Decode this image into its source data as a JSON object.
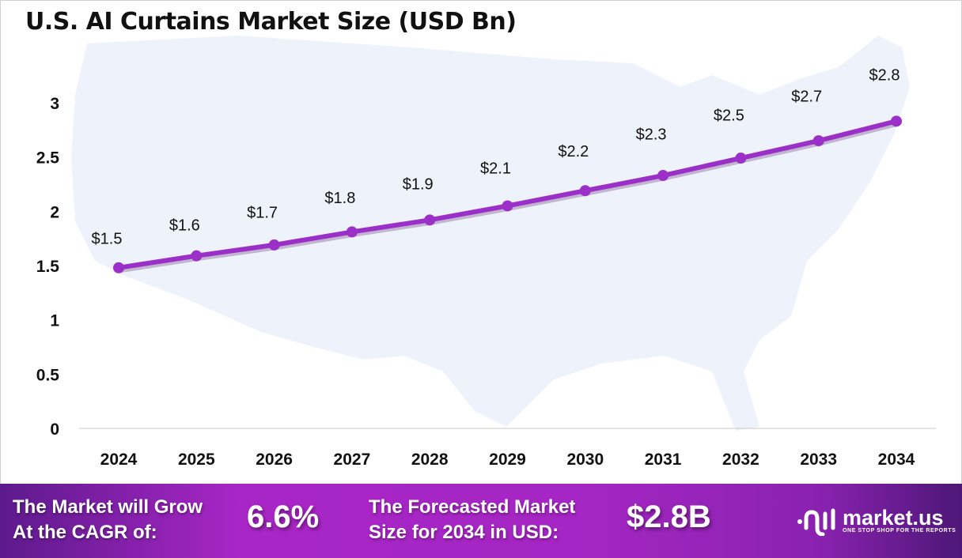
{
  "chart_data": {
    "type": "line",
    "title": "U.S. AI Curtains Market Size (USD Bn)",
    "xlabel": "",
    "ylabel": "",
    "categories": [
      "2024",
      "2025",
      "2026",
      "2027",
      "2028",
      "2029",
      "2030",
      "2031",
      "2032",
      "2033",
      "2034"
    ],
    "values": [
      1.48,
      1.59,
      1.69,
      1.81,
      1.92,
      2.05,
      2.19,
      2.33,
      2.49,
      2.65,
      2.83
    ],
    "data_labels": [
      "$1.5",
      "$1.6",
      "$1.7",
      "$1.8",
      "$1.9",
      "$2.1",
      "$2.2",
      "$2.3",
      "$2.5",
      "$2.7",
      "$2.8"
    ],
    "yticks": [
      "0",
      "0.5",
      "1",
      "1.5",
      "2",
      "2.5",
      "3"
    ],
    "ylim": [
      0,
      3
    ],
    "grid": false,
    "line_color": "#9b30c8",
    "background": "U.S. map silhouette"
  },
  "banner": {
    "cagr_label_line1": "The Market will Grow",
    "cagr_label_line2": "At the CAGR of:",
    "cagr_value": "6.6%",
    "forecast_label_line1": "The Forecasted Market",
    "forecast_label_line2": "Size for 2034 in USD:",
    "forecast_value": "$2.8B",
    "logo_name": "market.us",
    "logo_tagline": "ONE STOP SHOP FOR THE REPORTS"
  }
}
